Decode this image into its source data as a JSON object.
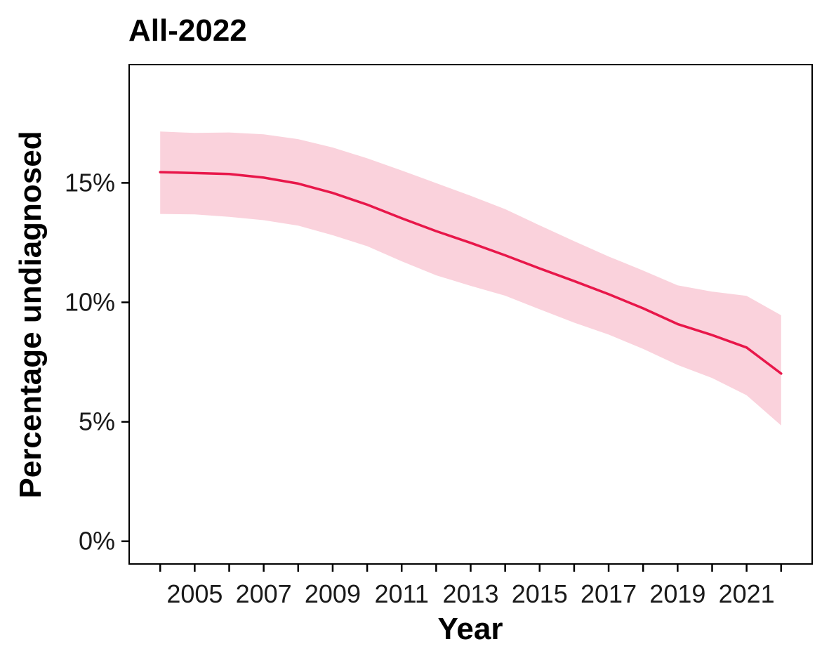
{
  "chart_data": {
    "type": "line",
    "title": "All-2022",
    "xlabel": "Year",
    "ylabel": "Percentage undiagnosed",
    "x": [
      2004,
      2005,
      2006,
      2007,
      2008,
      2009,
      2010,
      2011,
      2012,
      2013,
      2014,
      2015,
      2016,
      2017,
      2018,
      2019,
      2020,
      2021,
      2022
    ],
    "series": [
      {
        "values": [
          15.45,
          15.41,
          15.37,
          15.22,
          14.97,
          14.58,
          14.09,
          13.52,
          12.98,
          12.49,
          11.97,
          11.42,
          10.89,
          10.34,
          9.75,
          9.09,
          8.63,
          8.11,
          7.02
        ],
        "lower": [
          13.7,
          13.68,
          13.58,
          13.44,
          13.21,
          12.81,
          12.35,
          11.72,
          11.13,
          10.69,
          10.28,
          9.71,
          9.15,
          8.65,
          8.05,
          7.38,
          6.83,
          6.11,
          4.85
        ],
        "upper": [
          17.15,
          17.09,
          17.11,
          17.03,
          16.83,
          16.48,
          16.03,
          15.52,
          14.99,
          14.46,
          13.9,
          13.22,
          12.56,
          11.92,
          11.33,
          10.71,
          10.45,
          10.27,
          9.46
        ],
        "color": "#e8174a",
        "band_color": "#fad2dc"
      }
    ],
    "xticks": [
      2005,
      2007,
      2009,
      2011,
      2013,
      2015,
      2017,
      2019,
      2021
    ],
    "xtick_labels": [
      "2005",
      "2007",
      "2009",
      "2011",
      "2013",
      "2015",
      "2017",
      "2019",
      "2021"
    ],
    "yticks": [
      0,
      5,
      10,
      15
    ],
    "ytick_labels": [
      "0%",
      "5%",
      "10%",
      "15%"
    ],
    "xlim": [
      2003.1,
      2022.9
    ],
    "ylim": [
      -0.95,
      19.95
    ],
    "grid": false
  }
}
